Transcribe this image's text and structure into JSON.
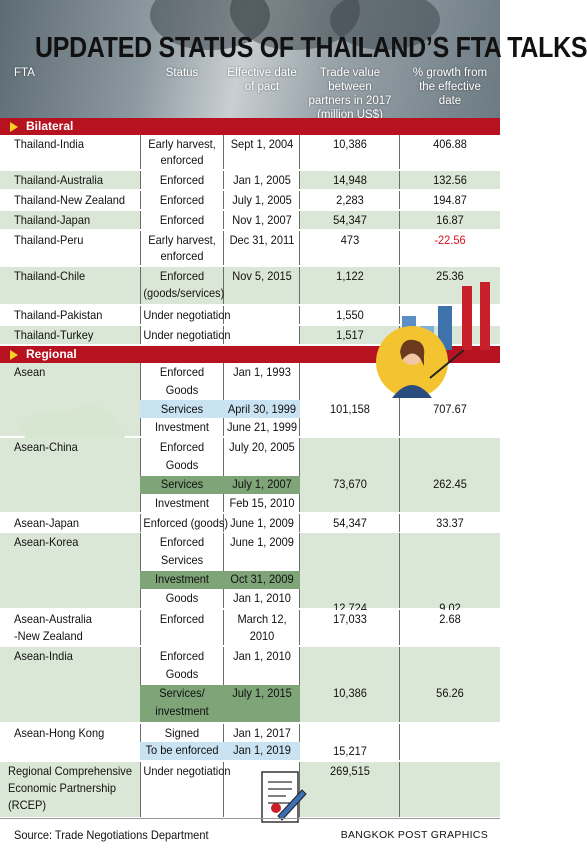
{
  "title": "UPDATED STATUS OF THAILAND’S FTA TALKS",
  "columns": {
    "fta": "FTA",
    "status": "Status",
    "effective_1": "Effective date",
    "effective_2": "of pact",
    "trade_1": "Trade value between",
    "trade_2": "partners in 2017",
    "trade_3": "(million US$)",
    "growth_1": "% growth from",
    "growth_2": "the effective",
    "growth_3": "date"
  },
  "bilateral_label": "Bilateral",
  "regional_label": "Regional",
  "bilateral": [
    {
      "fta": "Thailand-India",
      "status_1": "Early harvest,",
      "status_2": "enforced",
      "date": "Sept 1, 2004",
      "trade": "10,386",
      "growth": "406.88"
    },
    {
      "fta": "Thailand-Australia",
      "status_1": "Enforced",
      "date": "Jan 1, 2005",
      "trade": "14,948",
      "growth": "132.56"
    },
    {
      "fta": "Thailand-New Zealand",
      "status_1": "Enforced",
      "date": "July 1, 2005",
      "trade": "2,283",
      "growth": "194.87"
    },
    {
      "fta": "Thailand-Japan",
      "status_1": "Enforced",
      "date": "Nov 1, 2007",
      "trade": "54,347",
      "growth": "16.87"
    },
    {
      "fta": "Thailand-Peru",
      "status_1": "Early harvest,",
      "status_2": "enforced",
      "date": "Dec 31, 2011",
      "trade": "473",
      "growth": "-22.56"
    },
    {
      "fta": "Thailand-Chile",
      "status_1": "Enforced",
      "status_2": "(goods/services)",
      "date": "Nov 5, 2015",
      "trade": "1,122",
      "growth": "25.36"
    },
    {
      "fta": "Thailand-Pakistan",
      "status_1": "Under negotiation",
      "trade": "1,550"
    },
    {
      "fta": "Thailand-Turkey",
      "status_1": "Under negotiation",
      "trade": "1,517"
    }
  ],
  "regional": [
    {
      "fta": "Asean",
      "lines": [
        {
          "status": "Enforced",
          "date": "Jan 1, 1993"
        },
        {
          "status": "Goods",
          "date": ""
        },
        {
          "status": "Services",
          "date": "April 30, 1999"
        },
        {
          "status": "Investment",
          "date": "June 21, 1999"
        }
      ],
      "trade": "101,158",
      "growth": "707.67"
    },
    {
      "fta": "Asean-China",
      "lines": [
        {
          "status": "Enforced",
          "date": "July 20, 2005"
        },
        {
          "status": "Goods",
          "date": ""
        },
        {
          "status": "Services",
          "date": "July 1, 2007"
        },
        {
          "status": "Investment",
          "date": "Feb 15, 2010"
        }
      ],
      "trade": "73,670",
      "growth": "262.45"
    },
    {
      "fta": "Asean-Japan",
      "lines": [
        {
          "status": "Enforced (goods)",
          "date": "June 1, 2009"
        }
      ],
      "trade": "54,347",
      "growth": "33.37"
    },
    {
      "fta": "Asean-Korea",
      "lines": [
        {
          "status": "Enforced",
          "date": "June 1, 2009"
        },
        {
          "status": "Services",
          "date": ""
        },
        {
          "status": "Investment",
          "date": "Oct 31, 2009"
        },
        {
          "status": "Goods",
          "date": "Jan 1, 2010"
        }
      ],
      "trade": "12,724",
      "growth": "9.02"
    },
    {
      "fta_1": "Asean-Australia",
      "fta_2": "-New Zealand",
      "lines": [
        {
          "status": "Enforced",
          "date": "March 12,"
        },
        {
          "status": "",
          "date": "2010"
        }
      ],
      "trade": "17,033",
      "growth": "2.68"
    },
    {
      "fta": "Asean-India",
      "lines": [
        {
          "status": "Enforced",
          "date": "Jan 1, 2010"
        },
        {
          "status": "Goods",
          "date": ""
        },
        {
          "status": "Services/",
          "date": "July 1, 2015"
        },
        {
          "status": "investment",
          "date": ""
        }
      ],
      "trade": "10,386",
      "growth": "56.26"
    },
    {
      "fta": "Asean-Hong Kong",
      "lines": [
        {
          "status": "Signed",
          "date": "Jan 1, 2017"
        },
        {
          "status": "To be enforced",
          "date": "Jan 1, 2019"
        }
      ],
      "trade": "15,217"
    },
    {
      "fta_1": "Regional Comprehensive",
      "fta_2": "Economic Partnership",
      "fta_3": "(RCEP)",
      "lines": [
        {
          "status": "Under negotiation",
          "date": ""
        }
      ],
      "trade": "269,515"
    }
  ],
  "source": "Source: Trade Negotiations Department",
  "credit": "BANGKOK POST GRAPHICS",
  "colors": {
    "section_bar": "#b7121f",
    "row_green": "#dbe7d6",
    "highlight_blue": "#c9e3f3",
    "highlight_green": "#7ea478",
    "negative": "#d3141d",
    "triangle": "#f4d21f"
  },
  "icons": [
    "businesswoman-presenter-icon",
    "bar-chart-icon",
    "world-map-icon",
    "contract-pen-icon"
  ]
}
